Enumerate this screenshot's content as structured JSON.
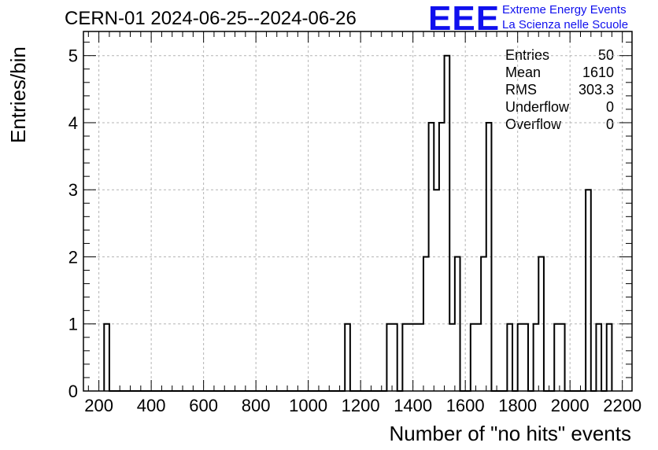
{
  "title": "CERN-01 2024-06-25--2024-06-26",
  "logo": {
    "mark": "EEE",
    "line1": "Extreme Energy Events",
    "line2": "La Scienza nelle Scuole",
    "color": "#1010ee"
  },
  "stats": [
    {
      "label": "Entries",
      "value": "50"
    },
    {
      "label": "Mean",
      "value": "1610"
    },
    {
      "label": "RMS",
      "value": "303.3"
    },
    {
      "label": "Underflow",
      "value": "0"
    },
    {
      "label": "Overflow",
      "value": "0"
    }
  ],
  "chart_data": {
    "type": "bar",
    "histogram": true,
    "xlabel": "Number of \"no hits\" events",
    "ylabel": "Entries/bin",
    "xlim": [
      141,
      2237
    ],
    "ylim": [
      0,
      5.36
    ],
    "grid": true,
    "bin_width": 20,
    "x_ticks": [
      200,
      400,
      600,
      800,
      1000,
      1200,
      1400,
      1600,
      1800,
      2000,
      2200
    ],
    "y_ticks": [
      0,
      1,
      2,
      3,
      4,
      5
    ],
    "bins": [
      {
        "x": 220,
        "y": 1
      },
      {
        "x": 1140,
        "y": 1
      },
      {
        "x": 1300,
        "y": 1
      },
      {
        "x": 1320,
        "y": 1
      },
      {
        "x": 1360,
        "y": 1
      },
      {
        "x": 1380,
        "y": 1
      },
      {
        "x": 1400,
        "y": 1
      },
      {
        "x": 1420,
        "y": 1
      },
      {
        "x": 1440,
        "y": 2
      },
      {
        "x": 1460,
        "y": 4
      },
      {
        "x": 1480,
        "y": 3
      },
      {
        "x": 1500,
        "y": 4
      },
      {
        "x": 1520,
        "y": 5
      },
      {
        "x": 1540,
        "y": 1
      },
      {
        "x": 1560,
        "y": 2
      },
      {
        "x": 1620,
        "y": 1
      },
      {
        "x": 1640,
        "y": 1
      },
      {
        "x": 1660,
        "y": 2
      },
      {
        "x": 1680,
        "y": 4
      },
      {
        "x": 1760,
        "y": 1
      },
      {
        "x": 1800,
        "y": 1
      },
      {
        "x": 1820,
        "y": 1
      },
      {
        "x": 1860,
        "y": 1
      },
      {
        "x": 1880,
        "y": 2
      },
      {
        "x": 1940,
        "y": 1
      },
      {
        "x": 1960,
        "y": 1
      },
      {
        "x": 2060,
        "y": 3
      },
      {
        "x": 2100,
        "y": 1
      },
      {
        "x": 2140,
        "y": 1
      }
    ]
  }
}
